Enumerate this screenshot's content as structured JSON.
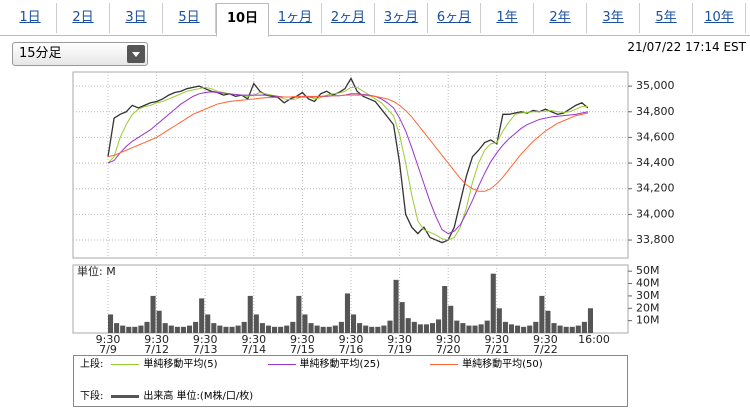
{
  "tabs": [
    "1日",
    "2日",
    "3日",
    "5日",
    "10日",
    "1ヶ月",
    "2ヶ月",
    "3ヶ月",
    "6ヶ月",
    "1年",
    "2年",
    "3年",
    "5年",
    "10年"
  ],
  "active_tab": "10日",
  "interval_select": "15分足",
  "timestamp": "21/07/22 17:14 EST",
  "chart_data": [
    {
      "type": "line",
      "legend_label": "上段:",
      "ylim": [
        33660,
        35110
      ],
      "yticks": [
        {
          "value": 33800,
          "label": "33,800"
        },
        {
          "value": 34000,
          "label": "34,000"
        },
        {
          "value": 34200,
          "label": "34,200"
        },
        {
          "value": 34400,
          "label": "34,400"
        },
        {
          "value": 34600,
          "label": "34,600"
        },
        {
          "value": 34800,
          "label": "34,800"
        },
        {
          "value": 35000,
          "label": "35,000"
        }
      ],
      "grid": true,
      "series": [
        {
          "color": "#333333",
          "values": [
            34450,
            34750,
            34780,
            34800,
            34850,
            34830,
            34850,
            34870,
            34880,
            34900,
            34930,
            34950,
            34960,
            34980,
            34990,
            35000,
            34980,
            34960,
            34950,
            34930,
            34940,
            34920,
            34930,
            34900,
            35020,
            34960,
            34930,
            34920,
            34910,
            34870,
            34900,
            34920,
            34950,
            34900,
            34880,
            34940,
            34960,
            34930,
            34950,
            34980,
            35060,
            34960,
            34920,
            34900,
            34880,
            34820,
            34760,
            34700,
            34400,
            34000,
            33900,
            33850,
            33900,
            33820,
            33800,
            33780,
            33800,
            33900,
            34100,
            34300,
            34450,
            34500,
            34560,
            34580,
            34550,
            34780,
            34780,
            34790,
            34800,
            34790,
            34810,
            34800,
            34820,
            34800,
            34780,
            34790,
            34820,
            34850,
            34870,
            34830,
            null
          ]
        },
        {
          "name": "単純移動平均(5)",
          "color": "#99cc33",
          "values": [
            34400,
            34450,
            34600,
            34700,
            34780,
            34820,
            34840,
            34850,
            34870,
            34880,
            34900,
            34920,
            34940,
            34960,
            34970,
            34980,
            34990,
            34980,
            34960,
            34950,
            34940,
            34935,
            34930,
            34920,
            34930,
            34950,
            34940,
            34930,
            34920,
            34900,
            34895,
            34900,
            34920,
            34920,
            34900,
            34910,
            34930,
            34940,
            34945,
            34960,
            34990,
            34990,
            34960,
            34930,
            34900,
            34870,
            34820,
            34770,
            34620,
            34400,
            34150,
            33950,
            33880,
            33860,
            33840,
            33810,
            33800,
            33820,
            33900,
            34050,
            34250,
            34400,
            34500,
            34550,
            34560,
            34650,
            34720,
            34780,
            34790,
            34795,
            34800,
            34800,
            34805,
            34810,
            34800,
            34795,
            34800,
            34820,
            34840,
            34840,
            null
          ]
        },
        {
          "name": "単純移動平均(25)",
          "color": "#9933cc",
          "values": [
            34400,
            34420,
            34480,
            34530,
            34570,
            34600,
            34630,
            34660,
            34700,
            34740,
            34780,
            34820,
            34860,
            34890,
            34920,
            34940,
            34950,
            34955,
            34950,
            34945,
            34940,
            34935,
            34930,
            34930,
            34930,
            34930,
            34930,
            34925,
            34920,
            34915,
            34915,
            34915,
            34915,
            34915,
            34915,
            34920,
            34920,
            34925,
            34925,
            34930,
            34940,
            34940,
            34935,
            34930,
            34920,
            34900,
            34870,
            34830,
            34750,
            34650,
            34520,
            34380,
            34240,
            34100,
            33980,
            33880,
            33850,
            33870,
            33920,
            34010,
            34110,
            34220,
            34320,
            34410,
            34480,
            34540,
            34590,
            34630,
            34670,
            34700,
            34720,
            34740,
            34750,
            34760,
            34765,
            34770,
            34775,
            34780,
            34790,
            34800,
            null
          ]
        },
        {
          "name": "単純移動平均(50)",
          "color": "#ff6633",
          "values": [
            34450,
            34460,
            34480,
            34500,
            34520,
            34540,
            34560,
            34580,
            34600,
            34630,
            34660,
            34690,
            34720,
            34750,
            34780,
            34800,
            34820,
            34840,
            34860,
            34870,
            34880,
            34885,
            34890,
            34895,
            34900,
            34905,
            34910,
            34910,
            34915,
            34915,
            34915,
            34920,
            34920,
            34920,
            34920,
            34920,
            34925,
            34925,
            34925,
            34930,
            34930,
            34930,
            34930,
            34925,
            34920,
            34910,
            34900,
            34880,
            34850,
            34810,
            34760,
            34700,
            34640,
            34580,
            34520,
            34460,
            34400,
            34340,
            34280,
            34230,
            34200,
            34180,
            34180,
            34200,
            34240,
            34290,
            34350,
            34410,
            34470,
            34520,
            34570,
            34610,
            34650,
            34680,
            34710,
            34730,
            34750,
            34770,
            34780,
            34790,
            null
          ]
        }
      ]
    },
    {
      "type": "bar",
      "legend_label": "下段:",
      "unit_label": "単位: M",
      "categories": [
        "9:30",
        null,
        null,
        null,
        null,
        null,
        null,
        null,
        "9:30",
        null,
        null,
        null,
        null,
        null,
        null,
        null,
        "9:30",
        null,
        null,
        null,
        null,
        null,
        null,
        null,
        "9:30",
        null,
        null,
        null,
        null,
        null,
        null,
        null,
        "9:30",
        null,
        null,
        null,
        null,
        null,
        null,
        null,
        "9:30",
        null,
        null,
        null,
        null,
        null,
        null,
        null,
        "9:30",
        null,
        null,
        null,
        null,
        null,
        null,
        null,
        "9:30",
        null,
        null,
        null,
        null,
        null,
        null,
        null,
        "9:30",
        null,
        null,
        null,
        null,
        null,
        null,
        null,
        "9:30",
        null,
        null,
        null,
        null,
        null,
        null,
        null,
        "16:00"
      ],
      "x_sublabels": [
        "7/9",
        null,
        null,
        null,
        null,
        null,
        null,
        null,
        "7/12",
        null,
        null,
        null,
        null,
        null,
        null,
        null,
        "7/13",
        null,
        null,
        null,
        null,
        null,
        null,
        null,
        "7/14",
        null,
        null,
        null,
        null,
        null,
        null,
        null,
        "7/15",
        null,
        null,
        null,
        null,
        null,
        null,
        null,
        "7/16",
        null,
        null,
        null,
        null,
        null,
        null,
        null,
        "7/19",
        null,
        null,
        null,
        null,
        null,
        null,
        null,
        "7/20",
        null,
        null,
        null,
        null,
        null,
        null,
        null,
        "7/21",
        null,
        null,
        null,
        null,
        null,
        null,
        null,
        "7/22",
        null,
        null,
        null,
        null,
        null,
        null,
        null,
        null
      ],
      "ylim": [
        0,
        55
      ],
      "yticks": [
        {
          "value": 10,
          "label": "10M"
        },
        {
          "value": 20,
          "label": "20M"
        },
        {
          "value": 30,
          "label": "30M"
        },
        {
          "value": 40,
          "label": "40M"
        },
        {
          "value": 50,
          "label": "50M"
        }
      ],
      "series": [
        {
          "name": "出来高 単位:(M株/口/枚)",
          "color": "#555555",
          "values": [
            15,
            8,
            6,
            5,
            5,
            6,
            9,
            30,
            18,
            8,
            6,
            5,
            5,
            6,
            9,
            28,
            15,
            8,
            6,
            5,
            5,
            6,
            9,
            30,
            15,
            8,
            6,
            5,
            5,
            6,
            9,
            30,
            15,
            8,
            6,
            5,
            5,
            6,
            9,
            32,
            15,
            8,
            6,
            5,
            5,
            6,
            10,
            43,
            25,
            12,
            9,
            7,
            7,
            8,
            11,
            38,
            22,
            10,
            8,
            6,
            6,
            7,
            10,
            48,
            20,
            9,
            7,
            6,
            5,
            6,
            9,
            30,
            18,
            8,
            6,
            5,
            5,
            6,
            9,
            20,
            null
          ]
        }
      ]
    }
  ]
}
